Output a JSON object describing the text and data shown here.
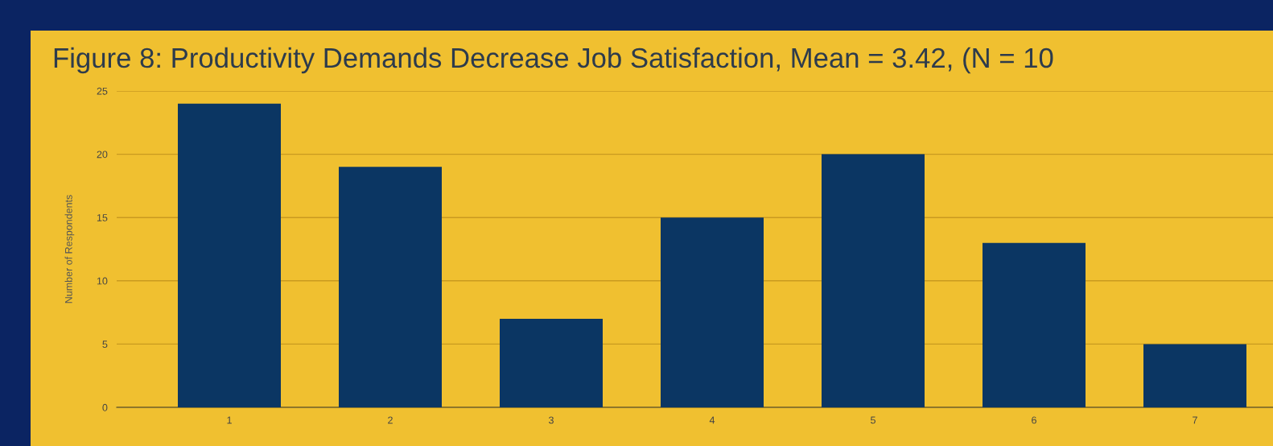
{
  "chart_data": {
    "type": "bar",
    "title": "Figure 8: Productivity Demands Decrease Job Satisfaction, Mean = 3.42, (N = 10",
    "ylabel": "Number of Respondents",
    "categories": [
      "1",
      "2",
      "3",
      "4",
      "5",
      "6",
      "7"
    ],
    "values": [
      24,
      19,
      7,
      15,
      20,
      13,
      5
    ],
    "color": "#0b3663",
    "ylim": [
      0,
      25
    ],
    "yticks": [
      0,
      5,
      10,
      15,
      20,
      25
    ],
    "grid": "y",
    "legend": false
  }
}
